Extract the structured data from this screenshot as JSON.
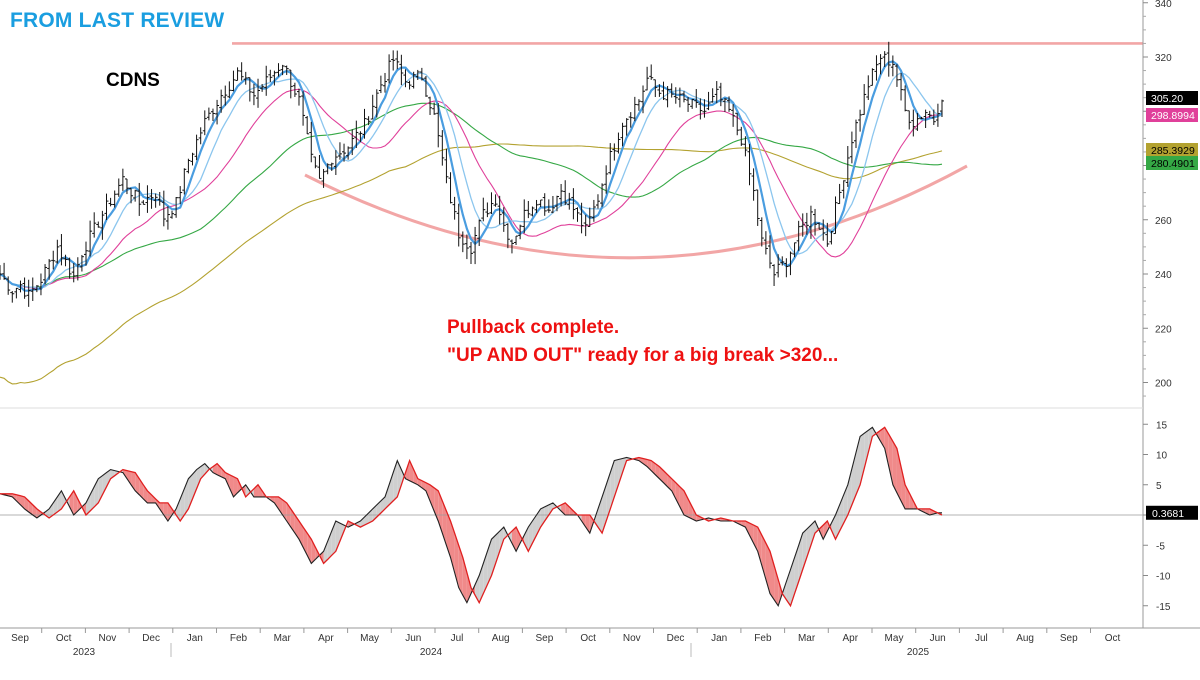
{
  "headline": "FROM LAST REVIEW",
  "ticker": "CDNS",
  "annotation": {
    "line1": "Pullback complete.",
    "line2": "\"UP AND OUT\" ready for a big break >320..."
  },
  "colors": {
    "headline": "#1a9ee0",
    "annotation": "#ee1111",
    "bars": "#111111",
    "ma_fast": "#4a9de0",
    "ma_light": "#8cc6ee",
    "ma_magenta": "#e0409a",
    "ma_green": "#35a845",
    "ma_olive": "#b3a230",
    "resistance": "#f2a6a6",
    "osc_black": "#222222",
    "osc_red": "#e02020",
    "osc_fill_red": "#f08a8a",
    "osc_fill_grey": "#cfcfcf"
  },
  "chart_data": [
    {
      "type": "line",
      "subtype": "ohlc-bars-with-moving-averages",
      "title": "CDNS",
      "y_ticks": [
        200,
        220,
        240,
        260,
        280,
        300,
        320,
        340
      ],
      "ylim": [
        190,
        343
      ],
      "x_months": [
        "Sep",
        "Oct",
        "Nov",
        "Dec",
        "Jan",
        "Feb",
        "Mar",
        "Apr",
        "May",
        "Jun",
        "Jul",
        "Aug",
        "Sep",
        "Oct",
        "Nov",
        "Dec",
        "Jan",
        "Feb",
        "Mar",
        "Apr",
        "May",
        "Jun",
        "Jul",
        "Aug",
        "Sep",
        "Oct"
      ],
      "x_years": [
        "2023",
        "2024",
        "2025"
      ],
      "resistance_level": 325,
      "price_path": [
        [
          0,
          240
        ],
        [
          3,
          234
        ],
        [
          5,
          236
        ],
        [
          7,
          232
        ],
        [
          10,
          238
        ],
        [
          14,
          250
        ],
        [
          18,
          239
        ],
        [
          20,
          248
        ],
        [
          25,
          262
        ],
        [
          30,
          275
        ],
        [
          34,
          266
        ],
        [
          38,
          270
        ],
        [
          40,
          261
        ],
        [
          43,
          266
        ],
        [
          46,
          282
        ],
        [
          50,
          296
        ],
        [
          54,
          306
        ],
        [
          58,
          314
        ],
        [
          62,
          306
        ],
        [
          65,
          311
        ],
        [
          69,
          318
        ],
        [
          73,
          304
        ],
        [
          76,
          282
        ],
        [
          78,
          274
        ],
        [
          81,
          283
        ],
        [
          85,
          287
        ],
        [
          89,
          295
        ],
        [
          93,
          310
        ],
        [
          96,
          319
        ],
        [
          99,
          311
        ],
        [
          103,
          313
        ],
        [
          106,
          298
        ],
        [
          109,
          274
        ],
        [
          112,
          255
        ],
        [
          115,
          250
        ],
        [
          118,
          262
        ],
        [
          121,
          268
        ],
        [
          123,
          258
        ],
        [
          125,
          252
        ],
        [
          128,
          262
        ],
        [
          131,
          268
        ],
        [
          134,
          264
        ],
        [
          137,
          271
        ],
        [
          140,
          264
        ],
        [
          143,
          256
        ],
        [
          146,
          268
        ],
        [
          148,
          279
        ],
        [
          152,
          296
        ],
        [
          156,
          304
        ],
        [
          158,
          312
        ],
        [
          161,
          307
        ],
        [
          165,
          305
        ],
        [
          169,
          302
        ],
        [
          172,
          300
        ],
        [
          175,
          306
        ],
        [
          178,
          300
        ],
        [
          181,
          290
        ],
        [
          184,
          270
        ],
        [
          186,
          252
        ],
        [
          189,
          240
        ],
        [
          192,
          245
        ],
        [
          195,
          255
        ],
        [
          198,
          262
        ],
        [
          200,
          258
        ],
        [
          202,
          252
        ],
        [
          205,
          270
        ],
        [
          208,
          290
        ],
        [
          212,
          310
        ],
        [
          215,
          320
        ],
        [
          218,
          318
        ],
        [
          221,
          300
        ],
        [
          223,
          296
        ],
        [
          226,
          300
        ],
        [
          228,
          297
        ],
        [
          230,
          306
        ]
      ],
      "last_close": 305.2,
      "series": [
        {
          "name": "",
          "role": "fast moving average",
          "color": "#4a9de0"
        },
        {
          "name": "",
          "role": "moving average",
          "color": "#8cc6ee"
        },
        {
          "name": "",
          "role": "moving average",
          "color": "#e0409a",
          "last": 298.8994
        },
        {
          "name": "",
          "role": "moving average",
          "color": "#b3a230",
          "last": 285.3929
        },
        {
          "name": "",
          "role": "moving average",
          "color": "#35a845",
          "last": 280.4901
        }
      ],
      "price_labels": [
        {
          "value": 305.2,
          "text": "305.20",
          "fill": "#000000",
          "text_color": "#ffffff"
        },
        {
          "value": 298.8994,
          "text": "298.8994",
          "fill": "#e0409a",
          "text_color": "#ffffff"
        },
        {
          "value": 285.3929,
          "text": "285.3929",
          "fill": "#b3a230",
          "text_color": "#000000"
        },
        {
          "value": 280.4901,
          "text": "280.4901",
          "fill": "#35a845",
          "text_color": "#000000"
        }
      ]
    },
    {
      "type": "area",
      "subtype": "oscillator",
      "y_ticks": [
        -15,
        -10,
        -5,
        0,
        5,
        10,
        15
      ],
      "ylim": [
        -18,
        18
      ],
      "last_value": 0.3681,
      "last_label": "0.3681",
      "oscillator_path": [
        [
          0,
          3.5
        ],
        [
          3,
          3
        ],
        [
          6,
          1
        ],
        [
          9,
          -0.5
        ],
        [
          12,
          1
        ],
        [
          15,
          4
        ],
        [
          18,
          0
        ],
        [
          21,
          2
        ],
        [
          24,
          6
        ],
        [
          27,
          7.5
        ],
        [
          30,
          7
        ],
        [
          33,
          4
        ],
        [
          36,
          2
        ],
        [
          38,
          2
        ],
        [
          41,
          -1
        ],
        [
          43,
          1
        ],
        [
          46,
          6
        ],
        [
          48,
          7.5
        ],
        [
          50,
          8.5
        ],
        [
          52,
          7
        ],
        [
          55,
          6
        ],
        [
          57,
          3
        ],
        [
          60,
          5
        ],
        [
          62,
          3
        ],
        [
          65,
          3
        ],
        [
          67,
          2
        ],
        [
          70,
          -1
        ],
        [
          73,
          -4
        ],
        [
          76,
          -8
        ],
        [
          79,
          -6
        ],
        [
          82,
          -1
        ],
        [
          85,
          -2
        ],
        [
          88,
          -1
        ],
        [
          91,
          1
        ],
        [
          94,
          3
        ],
        [
          97,
          9
        ],
        [
          99,
          6
        ],
        [
          102,
          5
        ],
        [
          104,
          4
        ],
        [
          107,
          -1
        ],
        [
          110,
          -7
        ],
        [
          112,
          -12
        ],
        [
          114,
          -14.5
        ],
        [
          117,
          -10
        ],
        [
          120,
          -4
        ],
        [
          123,
          -2
        ],
        [
          126,
          -6
        ],
        [
          129,
          -2
        ],
        [
          132,
          1
        ],
        [
          135,
          2
        ],
        [
          138,
          0
        ],
        [
          141,
          0
        ],
        [
          144,
          -3
        ],
        [
          147,
          3
        ],
        [
          150,
          9
        ],
        [
          153,
          9.5
        ],
        [
          156,
          9
        ],
        [
          158,
          8
        ],
        [
          161,
          6
        ],
        [
          164,
          4
        ],
        [
          167,
          0
        ],
        [
          170,
          -1
        ],
        [
          173,
          -0.5
        ],
        [
          176,
          -1
        ],
        [
          179,
          -1
        ],
        [
          182,
          -2
        ],
        [
          185,
          -6
        ],
        [
          188,
          -13
        ],
        [
          190,
          -15
        ],
        [
          193,
          -9
        ],
        [
          196,
          -3
        ],
        [
          199,
          -1
        ],
        [
          201,
          -4
        ],
        [
          204,
          0
        ],
        [
          207,
          5
        ],
        [
          210,
          13
        ],
        [
          213,
          14.5
        ],
        [
          216,
          11
        ],
        [
          218,
          5
        ],
        [
          221,
          1
        ],
        [
          224,
          1
        ],
        [
          227,
          0
        ],
        [
          229,
          0.37
        ]
      ],
      "signal_lag": 3
    }
  ]
}
